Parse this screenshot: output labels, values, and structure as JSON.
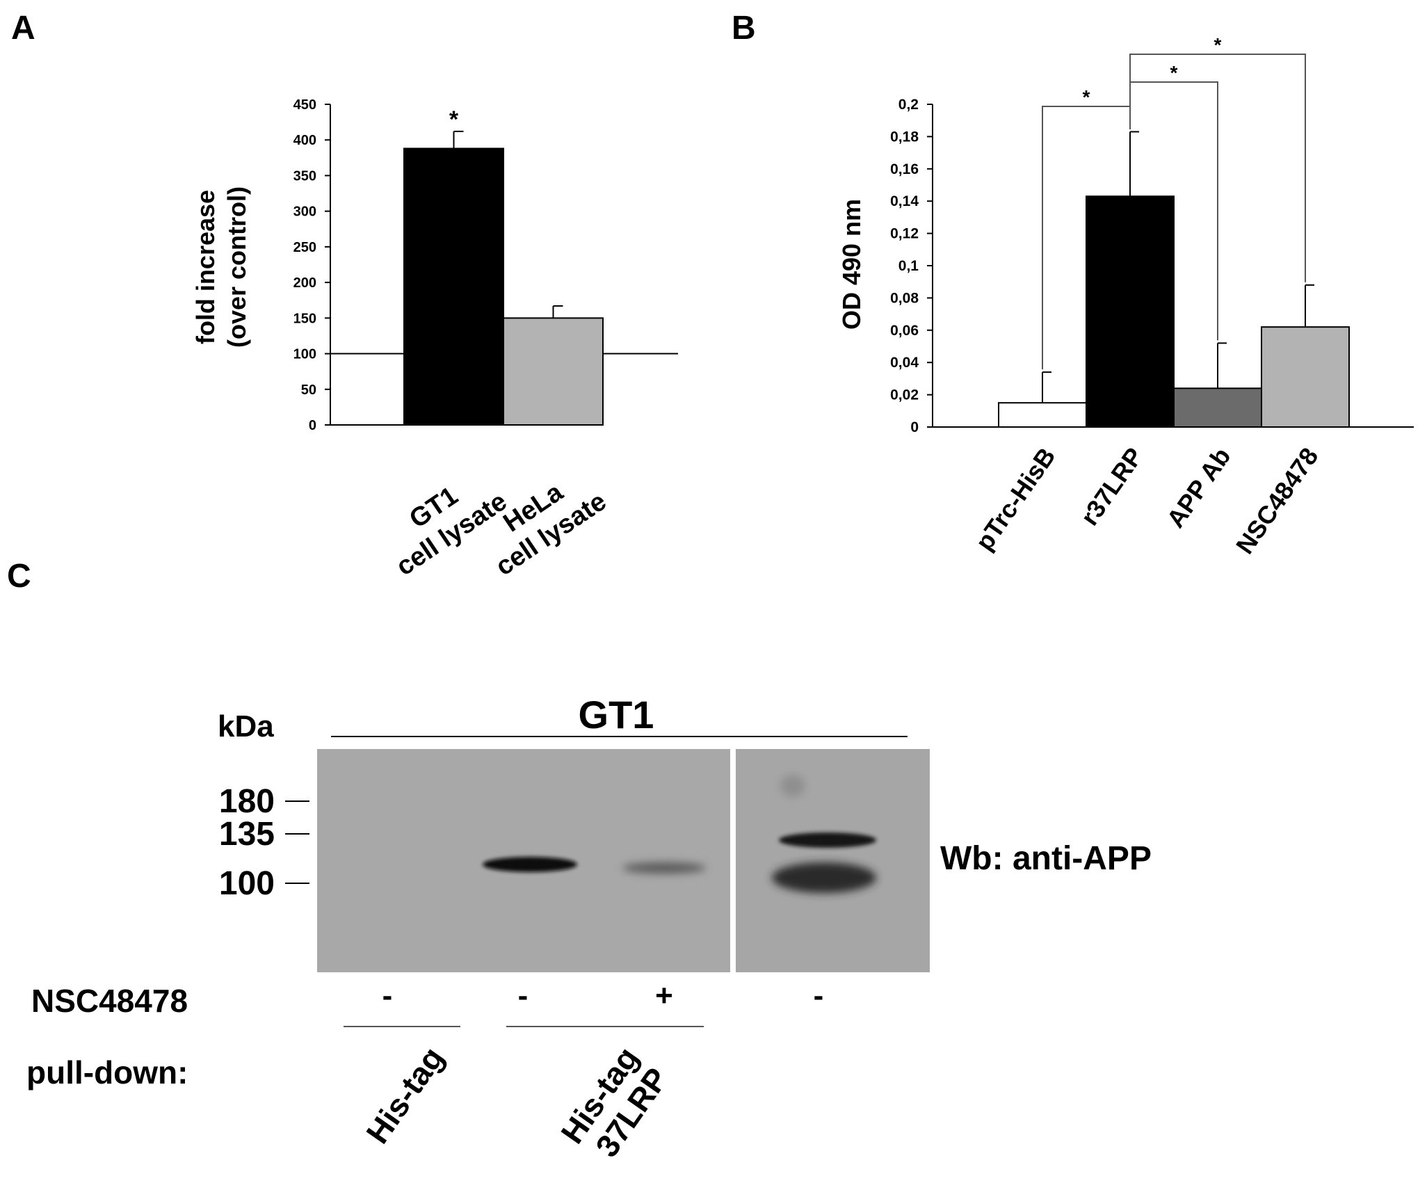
{
  "panel_labels": {
    "a": "A",
    "b": "B",
    "c": "C"
  },
  "chart_data": [
    {
      "panel": "A",
      "type": "bar",
      "categories": [
        [
          "GT1",
          "cell lysate"
        ],
        [
          "HeLa",
          "cell lysate"
        ]
      ],
      "values": [
        388,
        150
      ],
      "errors": [
        24,
        17
      ],
      "colors": [
        "#000000",
        "#b3b3b3"
      ],
      "significance": [
        "*",
        ""
      ],
      "ylabel": [
        "fold increase",
        "(over control)"
      ],
      "ylim": [
        0,
        450
      ],
      "yticks": [
        "0",
        "50",
        "100",
        "150",
        "200",
        "250",
        "300",
        "350",
        "400",
        "450"
      ],
      "reference_line": 100
    },
    {
      "panel": "B",
      "type": "bar",
      "categories": [
        "pTrc-HisB",
        "r37LRP",
        "APP Ab",
        "NSC48478"
      ],
      "values": [
        0.015,
        0.143,
        0.024,
        0.062
      ],
      "errors": [
        0.019,
        0.04,
        0.028,
        0.026
      ],
      "colors": [
        "#ffffff",
        "#000000",
        "#6b6b6b",
        "#b3b3b3"
      ],
      "ylabel": "OD 490 nm",
      "ylim": [
        0,
        0.2
      ],
      "yticks": [
        "0",
        "0,02",
        "0,04",
        "0,06",
        "0,08",
        "0,1",
        "0,12",
        "0,14",
        "0,16",
        "0,18",
        "0,2"
      ],
      "comparisons": [
        {
          "from": "r37LRP",
          "to": "pTrc-HisB",
          "label": "*"
        },
        {
          "from": "r37LRP",
          "to": "APP Ab",
          "label": "*"
        },
        {
          "from": "r37LRP",
          "to": "NSC48478",
          "label": "*"
        }
      ]
    }
  ],
  "blot": {
    "group_label": "GT1",
    "kda_label": "kDa",
    "markers": [
      "180",
      "135",
      "100"
    ],
    "antibody_label": "Wb: anti-APP",
    "treatment_label": "NSC48478",
    "treatment_signs": [
      "-",
      "-",
      "+",
      "-"
    ],
    "pulldown_label": "pull-down:",
    "pulldown_groups": [
      [
        "His-tag"
      ],
      [
        "His-tag",
        "37LRP"
      ]
    ]
  }
}
